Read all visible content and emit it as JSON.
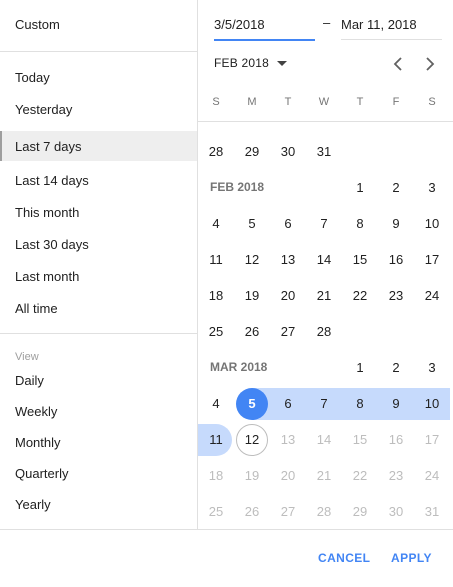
{
  "presets": {
    "custom": "Custom",
    "items": [
      "Today",
      "Yesterday",
      "Last 7 days",
      "Last 14 days",
      "This month",
      "Last 30 days",
      "Last month",
      "All time"
    ],
    "selected_index": 2
  },
  "view": {
    "label": "View",
    "items": [
      "Daily",
      "Weekly",
      "Monthly",
      "Quarterly",
      "Yearly"
    ]
  },
  "range": {
    "start": "3/5/2018",
    "separator": "–",
    "end": "Mar 11, 2018"
  },
  "calendar": {
    "month_selector": "FEB 2018",
    "weekdays": [
      "S",
      "M",
      "T",
      "W",
      "T",
      "F",
      "S"
    ],
    "jan_tail": [
      "28",
      "29",
      "30",
      "31"
    ],
    "feb": {
      "label": "FEB 2018",
      "first_row": [
        "1",
        "2",
        "3"
      ],
      "rows": [
        [
          "4",
          "5",
          "6",
          "7",
          "8",
          "9",
          "10"
        ],
        [
          "11",
          "12",
          "13",
          "14",
          "15",
          "16",
          "17"
        ],
        [
          "18",
          "19",
          "20",
          "21",
          "22",
          "23",
          "24"
        ],
        [
          "25",
          "26",
          "27",
          "28"
        ]
      ]
    },
    "mar": {
      "label": "MAR 2018",
      "first_row": [
        "1",
        "2",
        "3"
      ],
      "rows": [
        [
          "4",
          "5",
          "6",
          "7",
          "8",
          "9",
          "10"
        ],
        [
          "11",
          "12",
          "13",
          "14",
          "15",
          "16",
          "17"
        ],
        [
          "18",
          "19",
          "20",
          "21",
          "22",
          "23",
          "24"
        ],
        [
          "25",
          "26",
          "27",
          "28",
          "29",
          "30",
          "31"
        ]
      ]
    }
  },
  "colors": {
    "accent": "#4285f4",
    "range": "#c6dafc"
  },
  "footer": {
    "cancel": "CANCEL",
    "apply": "APPLY"
  }
}
